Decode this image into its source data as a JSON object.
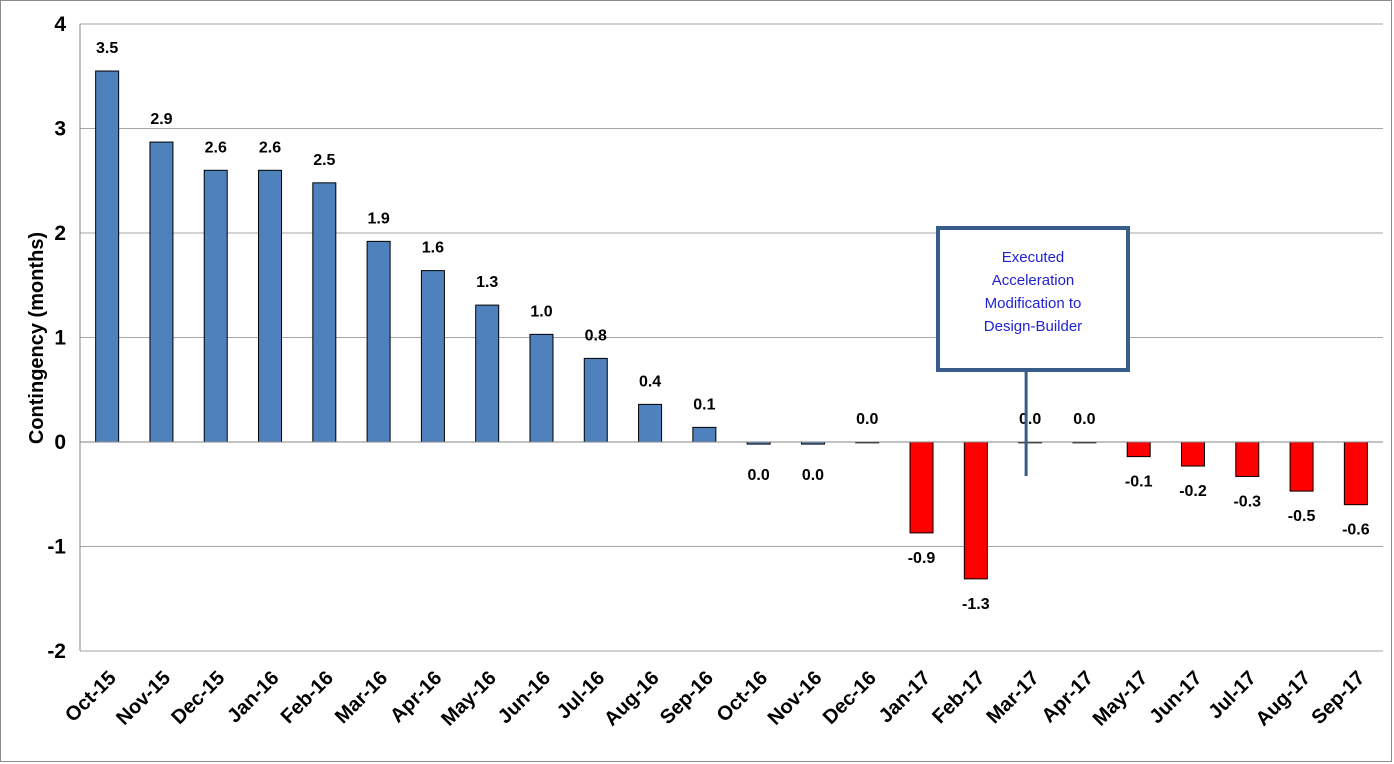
{
  "chart_data": {
    "type": "bar",
    "title": "",
    "xlabel": "",
    "ylabel": "Contingency (months)",
    "ylim": [
      -2,
      4
    ],
    "yticks": [
      -2,
      -1,
      0,
      1,
      2,
      3,
      4
    ],
    "grid": true,
    "legend": "none",
    "categories": [
      "Oct-15",
      "Nov-15",
      "Dec-15",
      "Jan-16",
      "Feb-16",
      "Mar-16",
      "Apr-16",
      "May-16",
      "Jun-16",
      "Jul-16",
      "Aug-16",
      "Sep-16",
      "Oct-16",
      "Nov-16",
      "Dec-16",
      "Jan-17",
      "Feb-17",
      "Mar-17",
      "Apr-17",
      "May-17",
      "Jun-17",
      "Jul-17",
      "Aug-17",
      "Sep-17"
    ],
    "values": [
      3.55,
      2.87,
      2.6,
      2.6,
      2.48,
      1.92,
      1.64,
      1.31,
      1.03,
      0.8,
      0.36,
      0.14,
      -0.02,
      -0.02,
      0.0,
      -0.87,
      -1.31,
      0.0,
      0.0,
      -0.14,
      -0.23,
      -0.33,
      -0.47,
      -0.6
    ],
    "labels": [
      "3.5",
      "2.9",
      "2.6",
      "2.6",
      "2.5",
      "1.9",
      "1.6",
      "1.3",
      "1.0",
      "0.8",
      "0.4",
      "0.1",
      "0.0",
      "0.0",
      "0.0",
      "-0.9",
      "-1.3",
      "0.0",
      "0.0",
      "-0.1",
      "-0.2",
      "-0.3",
      "-0.5",
      "-0.6"
    ],
    "colors": {
      "positive": "#4f81bd",
      "negative": "#ff0000",
      "border": "#000000",
      "grid": "#a6a6a6",
      "annotation_border": "#385d8a",
      "annotation_text": "#1f1fd6"
    },
    "annotation": {
      "lines": [
        "Executed",
        "Acceleration",
        "Modification to",
        "Design-Builder"
      ],
      "pointer_category": "Mar-17"
    }
  }
}
